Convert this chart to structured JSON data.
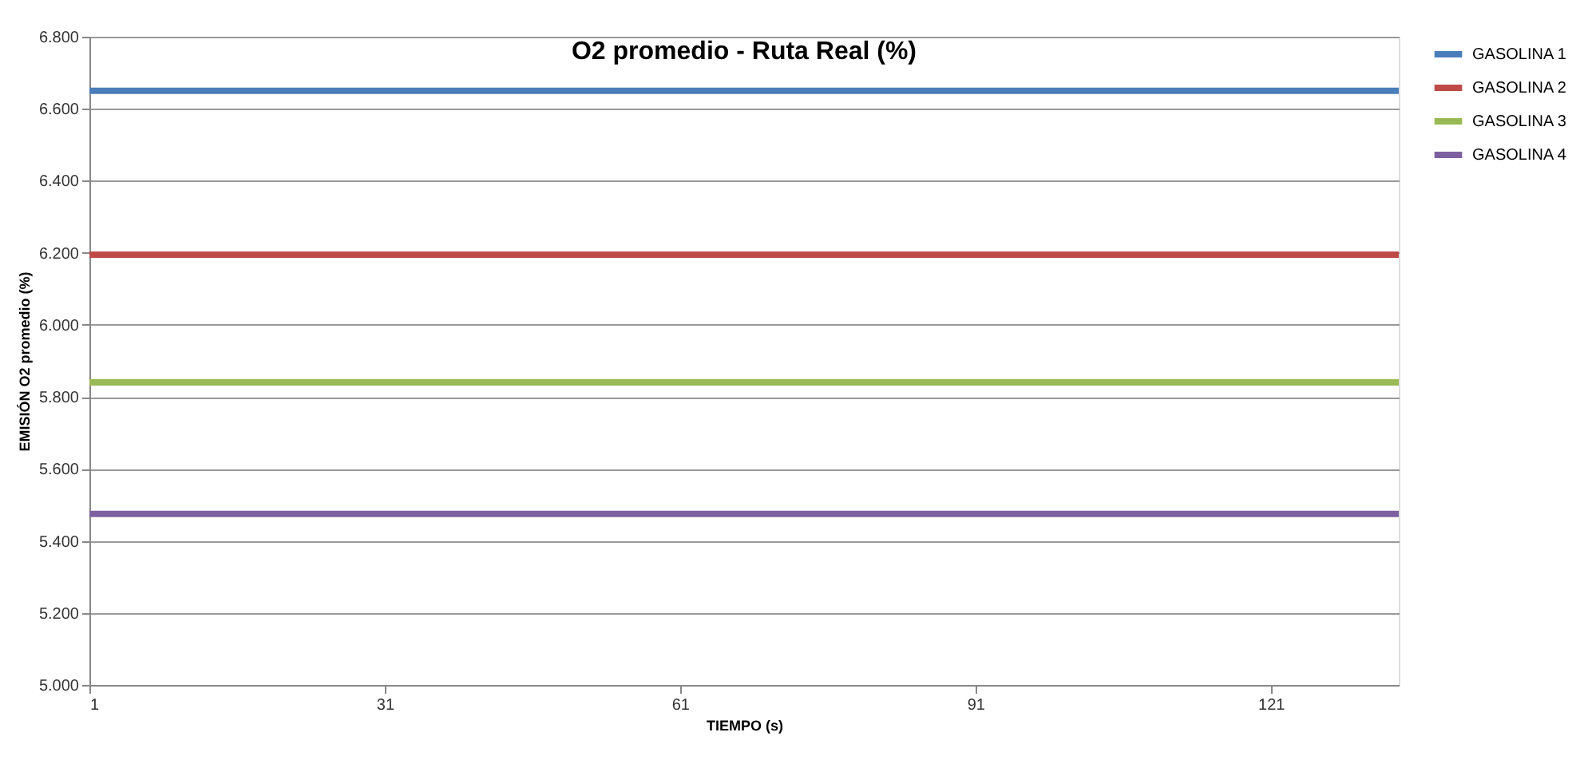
{
  "chart_data": {
    "type": "line",
    "title": "O2 promedio  -  Ruta Real (%)",
    "xlabel": "TIEMPO (s)",
    "ylabel": "EMISIÓN O2 promedio (%)",
    "x": [
      1,
      134
    ],
    "xlim": [
      1,
      134
    ],
    "xticks": [
      1,
      31,
      61,
      91,
      121
    ],
    "ylim": [
      5.0,
      6.8
    ],
    "yticks": [
      {
        "value": 5.0,
        "label": "5.000"
      },
      {
        "value": 5.2,
        "label": "5.200"
      },
      {
        "value": 5.4,
        "label": "5.400"
      },
      {
        "value": 5.6,
        "label": "5.600"
      },
      {
        "value": 5.8,
        "label": "5.800"
      },
      {
        "value": 6.0,
        "label": "6.000"
      },
      {
        "value": 6.2,
        "label": "6.200"
      },
      {
        "value": 6.4,
        "label": "6.400"
      },
      {
        "value": 6.6,
        "label": "6.600"
      },
      {
        "value": 6.8,
        "label": "6.800"
      }
    ],
    "series": [
      {
        "name": "GASOLINA 1",
        "color": "#4a7ebb",
        "values": [
          6.65,
          6.65
        ]
      },
      {
        "name": "GASOLINA 2",
        "color": "#be4b48",
        "values": [
          6.195,
          6.195
        ]
      },
      {
        "name": "GASOLINA 3",
        "color": "#98b954",
        "values": [
          5.84,
          5.84
        ]
      },
      {
        "name": "GASOLINA 4",
        "color": "#7d60a0",
        "values": [
          5.475,
          5.475
        ]
      }
    ],
    "grid": "y",
    "legend": "right",
    "marker": "none",
    "line_style": "solid"
  }
}
